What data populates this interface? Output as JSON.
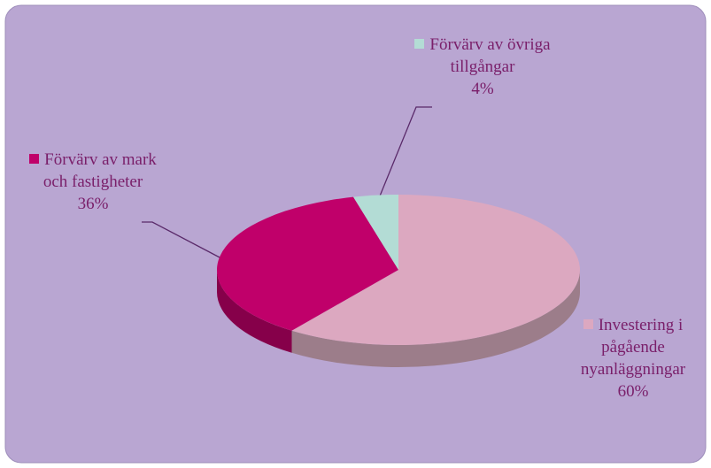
{
  "chart_data": {
    "type": "pie",
    "categories": [
      "Investering i pågående nyanläggningar",
      "Förvärv av mark och fastigheter",
      "Förvärv av övriga tillgångar"
    ],
    "values": [
      60,
      36,
      4
    ],
    "value_labels": [
      "60%",
      "36%",
      "4%"
    ],
    "colors": [
      "#dca8c0",
      "#c0006a",
      "#b3dcd5"
    ],
    "side_colors": [
      "#9c7d8a",
      "#86004a",
      "#7fa39d"
    ]
  }
}
